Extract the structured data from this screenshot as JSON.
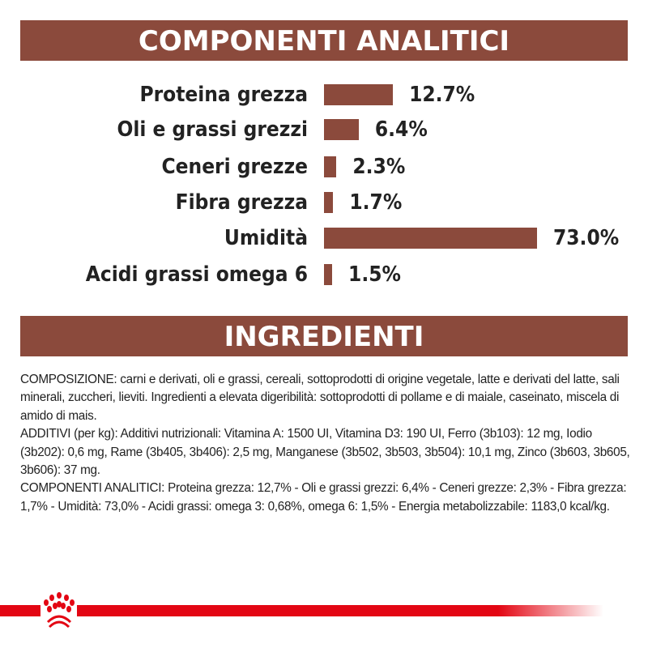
{
  "header1": "COMPONENTI ANALITICI",
  "header2": "INGREDIENTI",
  "chart_data": {
    "type": "bar",
    "orientation": "horizontal",
    "categories": [
      "Proteina grezza",
      "Oli e grassi grezzi",
      "Ceneri grezze",
      "Fibra grezza",
      "Umidità",
      "Acidi grassi omega 6"
    ],
    "values": [
      12.7,
      6.4,
      2.3,
      1.7,
      73.0,
      1.5
    ],
    "value_labels": [
      "12.7%",
      "6.4%",
      "2.3%",
      "1.7%",
      "73.0%",
      "1.5%"
    ],
    "bar_color": "#8b4a3c",
    "grid": false
  },
  "ingredients": [
    "COMPOSIZIONE: carni e derivati, oli e grassi, cereali, sottoprodotti di origine vegetale, latte e derivati del latte, sali minerali, zuccheri, lieviti. Ingredienti a elevata digeribilità: sottoprodotti di pollame e di maiale, caseinato, miscela di amido di mais.",
    "ADDITIVI (per kg): Additivi nutrizionali: Vitamina A: 1500 UI, Vitamina D3: 190 UI, Ferro (3b103): 12 mg, Iodio (3b202): 0,6 mg, Rame (3b405, 3b406): 2,5 mg, Manganese (3b502, 3b503, 3b504): 10,1 mg, Zinco (3b603, 3b605, 3b606): 37 mg.",
    "COMPONENTI ANALITICI: Proteina grezza: 12,7% - Oli e grassi grezzi: 6,4% - Ceneri grezze: 2,3% - Fibra grezza: 1,7% - Umidità: 73,0% - Acidi grassi: omega 3: 0,68%, omega 6: 1,5% - Energia metabolizzabile: 1183,0 kcal/kg."
  ],
  "brand_color": "#e30613",
  "logo_icon": "crown-icon"
}
